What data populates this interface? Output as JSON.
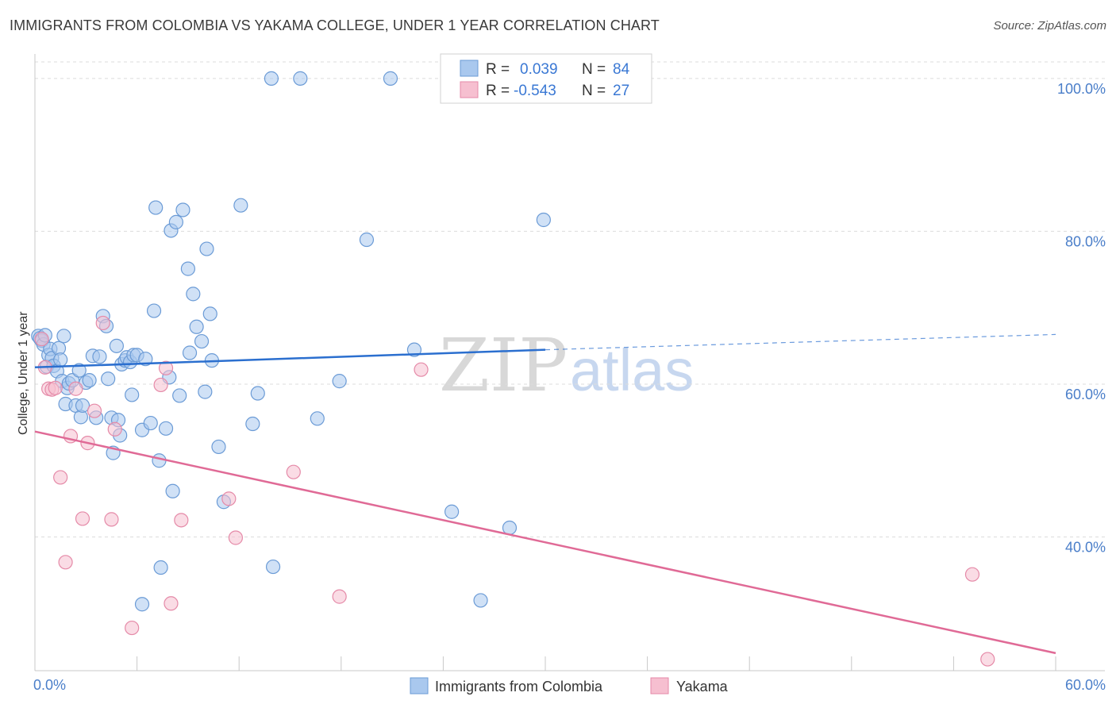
{
  "header": {
    "title": "IMMIGRANTS FROM COLOMBIA VS YAKAMA COLLEGE, UNDER 1 YEAR CORRELATION CHART",
    "source": "Source: ZipAtlas.com"
  },
  "watermark": {
    "zip": "ZIP",
    "atlas": "atlas"
  },
  "colors": {
    "blue_fill": "#a9c8ee",
    "blue_stroke": "#6b9bd6",
    "blue_line": "#2b6fcf",
    "pink_fill": "#f6bfd0",
    "pink_stroke": "#e58aa8",
    "pink_line": "#e06a96",
    "grid": "#dcdcdc",
    "tick_text": "#4a7ec9"
  },
  "legend": {
    "rows": [
      {
        "r_label": "R =",
        "r_value": "0.039",
        "n_label": "N =",
        "n_value": "84"
      },
      {
        "r_label": "R =",
        "r_value": "-0.543",
        "n_label": "N =",
        "n_value": "27"
      }
    ]
  },
  "chart_data": {
    "type": "scatter",
    "title": "IMMIGRANTS FROM COLOMBIA VS YAKAMA COLLEGE, UNDER 1 YEAR CORRELATION CHART",
    "xlabel": "",
    "ylabel": "College, Under 1 year",
    "xlim": [
      0,
      60
    ],
    "ylim": [
      22.5,
      103
    ],
    "x_ticks": [
      {
        "value": 0,
        "label": "0.0%"
      },
      {
        "value": 60,
        "label": "60.0%"
      }
    ],
    "y_ticks": [
      {
        "value": 40,
        "label": "40.0%"
      },
      {
        "value": 60,
        "label": "60.0%"
      },
      {
        "value": 80,
        "label": "80.0%"
      },
      {
        "value": 100,
        "label": "100.0%"
      }
    ],
    "legend_position": "top-center",
    "series": [
      {
        "name": "Immigrants from Colombia",
        "color": "#a9c8ee",
        "trend": {
          "x0": 0,
          "y0": 62.2,
          "x1": 30,
          "y1": 64.5,
          "dashed_to_x": 60,
          "dashed_to_y": 66.5
        },
        "points": [
          [
            0.2,
            66.3
          ],
          [
            0.3,
            66.0
          ],
          [
            0.4,
            65.7
          ],
          [
            0.5,
            65.2
          ],
          [
            0.6,
            66.4
          ],
          [
            0.7,
            62.3
          ],
          [
            0.8,
            63.8
          ],
          [
            0.9,
            64.6
          ],
          [
            1.0,
            63.4
          ],
          [
            1.1,
            62.4
          ],
          [
            1.3,
            61.7
          ],
          [
            1.4,
            64.7
          ],
          [
            1.5,
            63.2
          ],
          [
            1.6,
            60.4
          ],
          [
            1.7,
            66.3
          ],
          [
            1.8,
            57.4
          ],
          [
            1.9,
            59.5
          ],
          [
            2.0,
            60.1
          ],
          [
            2.2,
            60.5
          ],
          [
            2.4,
            57.2
          ],
          [
            2.6,
            61.8
          ],
          [
            2.7,
            55.7
          ],
          [
            2.8,
            57.2
          ],
          [
            3.0,
            60.2
          ],
          [
            3.2,
            60.5
          ],
          [
            3.4,
            63.7
          ],
          [
            3.6,
            55.6
          ],
          [
            3.8,
            63.6
          ],
          [
            4.0,
            68.9
          ],
          [
            4.2,
            67.6
          ],
          [
            4.3,
            60.7
          ],
          [
            4.5,
            55.6
          ],
          [
            4.6,
            51.0
          ],
          [
            4.8,
            65.0
          ],
          [
            4.9,
            55.3
          ],
          [
            5.0,
            53.3
          ],
          [
            5.1,
            62.6
          ],
          [
            5.3,
            63.1
          ],
          [
            5.4,
            63.5
          ],
          [
            5.6,
            62.9
          ],
          [
            5.7,
            58.6
          ],
          [
            5.8,
            63.8
          ],
          [
            6.0,
            63.8
          ],
          [
            6.3,
            54.0
          ],
          [
            6.5,
            63.3
          ],
          [
            6.8,
            54.9
          ],
          [
            7.0,
            69.6
          ],
          [
            7.1,
            83.1
          ],
          [
            7.3,
            50.0
          ],
          [
            7.4,
            36.0
          ],
          [
            7.7,
            54.2
          ],
          [
            7.9,
            60.9
          ],
          [
            8.0,
            80.1
          ],
          [
            8.1,
            46.0
          ],
          [
            8.3,
            81.2
          ],
          [
            8.5,
            58.5
          ],
          [
            8.7,
            82.8
          ],
          [
            9.0,
            75.1
          ],
          [
            9.1,
            64.1
          ],
          [
            9.3,
            71.8
          ],
          [
            9.5,
            67.5
          ],
          [
            9.8,
            65.6
          ],
          [
            10.0,
            59.0
          ],
          [
            10.1,
            77.7
          ],
          [
            10.3,
            69.2
          ],
          [
            10.4,
            63.1
          ],
          [
            10.8,
            51.8
          ],
          [
            11.1,
            44.6
          ],
          [
            12.1,
            83.4
          ],
          [
            12.8,
            54.8
          ],
          [
            13.1,
            58.8
          ],
          [
            13.9,
            100.0
          ],
          [
            14.0,
            36.1
          ],
          [
            15.6,
            100.0
          ],
          [
            16.6,
            55.5
          ],
          [
            17.9,
            60.4
          ],
          [
            19.5,
            78.9
          ],
          [
            20.9,
            100.0
          ],
          [
            22.3,
            64.5
          ],
          [
            24.5,
            43.3
          ],
          [
            26.2,
            31.7
          ],
          [
            27.9,
            41.2
          ],
          [
            29.9,
            81.5
          ],
          [
            6.3,
            31.2
          ]
        ]
      },
      {
        "name": "Yakama",
        "color": "#f6bfd0",
        "trend": {
          "x0": 0,
          "y0": 53.8,
          "x1": 60,
          "y1": 24.8
        },
        "points": [
          [
            0.4,
            65.9
          ],
          [
            0.6,
            62.2
          ],
          [
            0.8,
            59.4
          ],
          [
            1.0,
            59.3
          ],
          [
            1.2,
            59.5
          ],
          [
            1.5,
            47.8
          ],
          [
            1.8,
            36.7
          ],
          [
            2.1,
            53.2
          ],
          [
            2.4,
            59.4
          ],
          [
            2.8,
            42.4
          ],
          [
            3.1,
            52.3
          ],
          [
            3.5,
            56.5
          ],
          [
            4.0,
            68.0
          ],
          [
            4.5,
            42.3
          ],
          [
            4.7,
            54.1
          ],
          [
            5.7,
            28.1
          ],
          [
            7.4,
            59.9
          ],
          [
            7.7,
            62.1
          ],
          [
            8.0,
            31.3
          ],
          [
            8.6,
            42.2
          ],
          [
            11.4,
            45.0
          ],
          [
            11.8,
            39.9
          ],
          [
            15.2,
            48.5
          ],
          [
            17.9,
            32.2
          ],
          [
            22.7,
            61.9
          ],
          [
            55.1,
            35.1
          ],
          [
            56.0,
            24.0
          ]
        ]
      }
    ]
  },
  "bottom_legend": {
    "items": [
      {
        "label": "Immigrants from Colombia"
      },
      {
        "label": "Yakama"
      }
    ]
  }
}
